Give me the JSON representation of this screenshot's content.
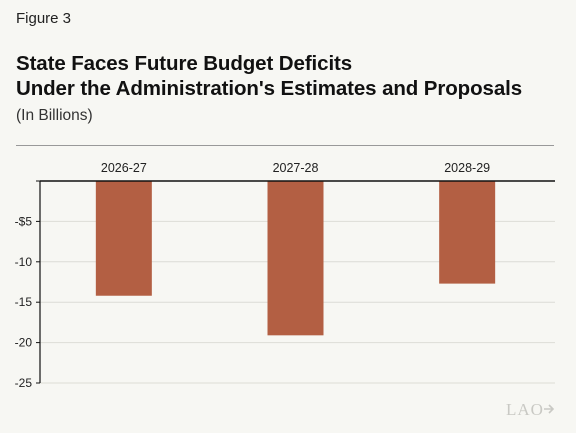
{
  "figure_label": "Figure 3",
  "title_lines": [
    "State Faces Future Budget Deficits",
    "Under the Administration's Estimates and Proposals"
  ],
  "subtitle": "(In Billions)",
  "logo_text": "LAO",
  "colors": {
    "bar": "#b35f43",
    "grid": "#dcdcd6",
    "axis": "#111111",
    "background": "#f7f7f3"
  },
  "chart_data": {
    "type": "bar",
    "categories": [
      "2026-27",
      "2027-28",
      "2028-29"
    ],
    "values": [
      -14.2,
      -19.1,
      -12.7
    ],
    "title": "State Faces Future Budget Deficits Under the Administration's Estimates and Proposals",
    "subtitle": "(In Billions)",
    "xlabel": "",
    "ylabel": "",
    "ylim": [
      -25,
      0
    ],
    "yticks": [
      0,
      -5,
      -10,
      -15,
      -20,
      -25
    ],
    "ytick_labels": [
      "",
      "-$5",
      "-10",
      "-15",
      "-20",
      "-25"
    ],
    "x_axis_position": "top",
    "grid": true,
    "legend": "none"
  }
}
